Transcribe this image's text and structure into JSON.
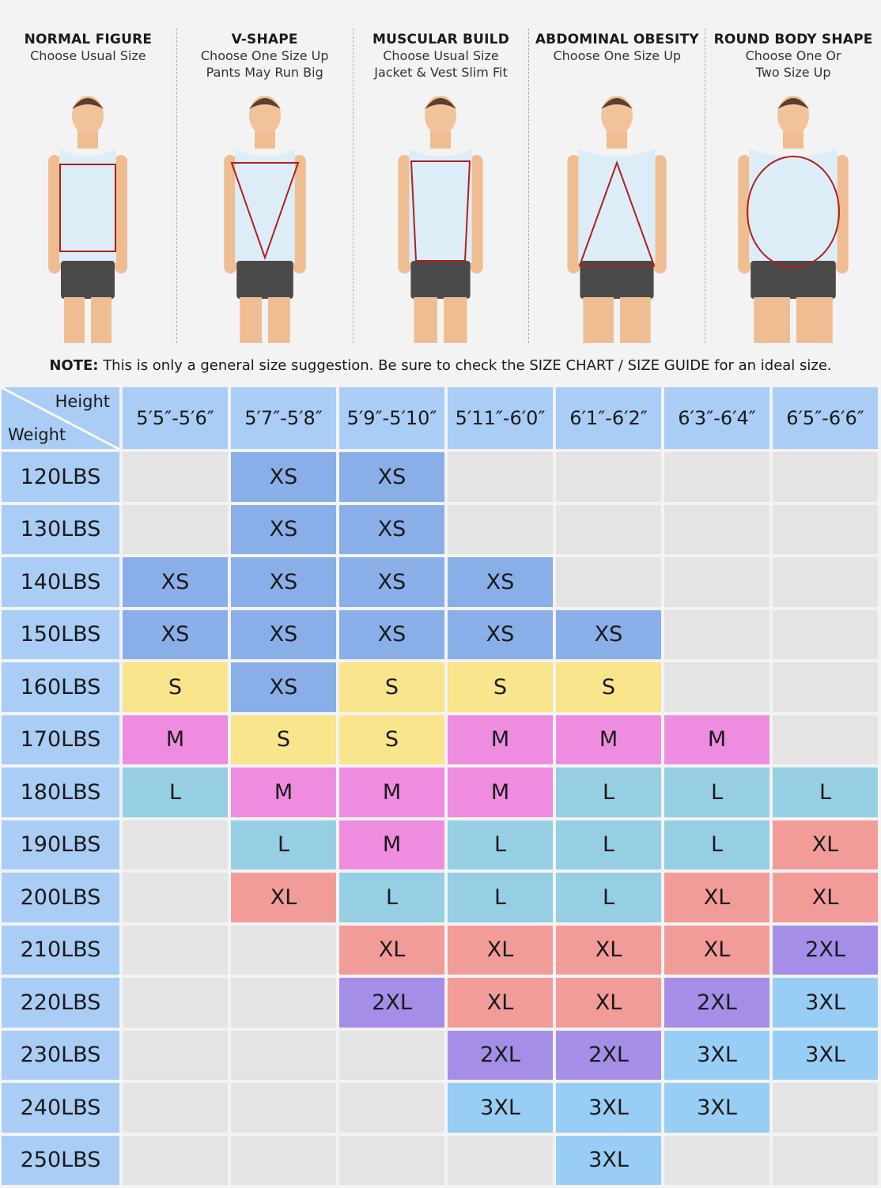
{
  "body_types": [
    {
      "title": "NORMAL FIGURE",
      "subtitle": "Choose Usual Size",
      "shape": "rectangle"
    },
    {
      "title": "V-SHAPE",
      "subtitle": "Choose One Size Up\nPants May Run Big",
      "shape": "inverted-triangle"
    },
    {
      "title": "MUSCULAR BUILD",
      "subtitle": "Choose Usual Size\nJacket & Vest Slim Fit",
      "shape": "trapezoid"
    },
    {
      "title": "ABDOMINAL OBESITY",
      "subtitle": "Choose One Size Up",
      "shape": "triangle"
    },
    {
      "title": "ROUND BODY SHAPE",
      "subtitle": "Choose One Or\nTwo Size Up",
      "shape": "ellipse"
    }
  ],
  "note": {
    "label": "NOTE:",
    "text": " This is only a general size suggestion. Be sure to check the SIZE CHART / SIZE GUIDE for an ideal size."
  },
  "table": {
    "corner_height": "Height",
    "corner_weight": "Weight",
    "heights": [
      "5′5″-5′6″",
      "5′7″-5′8″",
      "5′9″-5′10″",
      "5′11″-6′0″",
      "6′1″-6′2″",
      "6′3″-6′4″",
      "6′5″-6′6″"
    ],
    "rows": [
      {
        "weight": "120LBS",
        "sizes": [
          "",
          "XS",
          "XS",
          "",
          "",
          "",
          ""
        ]
      },
      {
        "weight": "130LBS",
        "sizes": [
          "",
          "XS",
          "XS",
          "",
          "",
          "",
          ""
        ]
      },
      {
        "weight": "140LBS",
        "sizes": [
          "XS",
          "XS",
          "XS",
          "XS",
          "",
          "",
          ""
        ]
      },
      {
        "weight": "150LBS",
        "sizes": [
          "XS",
          "XS",
          "XS",
          "XS",
          "XS",
          "",
          ""
        ]
      },
      {
        "weight": "160LBS",
        "sizes": [
          "S",
          "XS",
          "S",
          "S",
          "S",
          "",
          ""
        ]
      },
      {
        "weight": "170LBS",
        "sizes": [
          "M",
          "S",
          "S",
          "M",
          "M",
          "M",
          ""
        ]
      },
      {
        "weight": "180LBS",
        "sizes": [
          "L",
          "M",
          "M",
          "M",
          "L",
          "L",
          "L"
        ]
      },
      {
        "weight": "190LBS",
        "sizes": [
          "",
          "L",
          "M",
          "L",
          "L",
          "L",
          "XL"
        ]
      },
      {
        "weight": "200LBS",
        "sizes": [
          "",
          "XL",
          "L",
          "L",
          "L",
          "XL",
          "XL"
        ]
      },
      {
        "weight": "210LBS",
        "sizes": [
          "",
          "",
          "XL",
          "XL",
          "XL",
          "XL",
          "2XL"
        ]
      },
      {
        "weight": "220LBS",
        "sizes": [
          "",
          "",
          "2XL",
          "XL",
          "XL",
          "2XL",
          "3XL"
        ]
      },
      {
        "weight": "230LBS",
        "sizes": [
          "",
          "",
          "",
          "2XL",
          "2XL",
          "3XL",
          "3XL"
        ]
      },
      {
        "weight": "240LBS",
        "sizes": [
          "",
          "",
          "",
          "3XL",
          "3XL",
          "3XL",
          ""
        ]
      },
      {
        "weight": "250LBS",
        "sizes": [
          "",
          "",
          "",
          "",
          "3XL",
          "",
          ""
        ]
      }
    ]
  },
  "colors": {
    "XS": "#8aaee8",
    "S": "#f8e58c",
    "M": "#ee8de0",
    "L": "#96cfe3",
    "XL": "#f29c9a",
    "2XL": "#a48ee8",
    "3XL": "#98cef5",
    "empty": "#e4e4e4",
    "header": "#a9cdf5",
    "outline": "#b0201c"
  }
}
